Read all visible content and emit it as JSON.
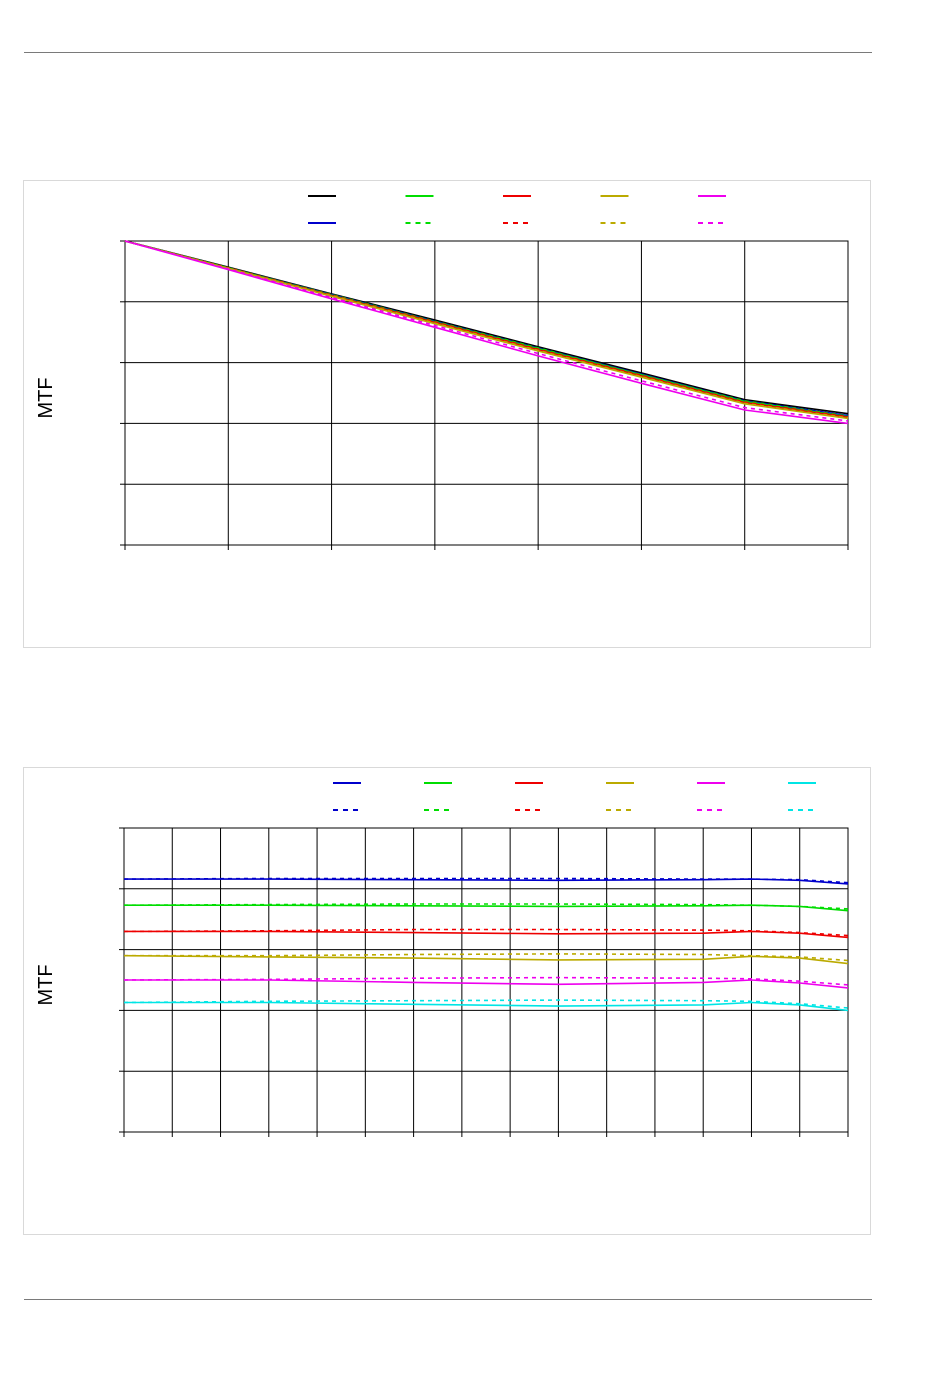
{
  "chart_data": [
    {
      "type": "line",
      "title": "",
      "xlabel": "",
      "ylabel": "MTF",
      "grid": true,
      "legend": "top",
      "xlim": [
        0,
        7
      ],
      "ylim": [
        0,
        5
      ],
      "x_divisions": 7,
      "y_divisions": 5,
      "series": [
        {
          "color": "#000000",
          "style": "solid",
          "x": [
            0,
            1,
            2,
            3,
            4,
            5,
            6,
            7
          ],
          "y": [
            5.0,
            4.57,
            4.13,
            3.7,
            3.26,
            2.83,
            2.39,
            2.16
          ]
        },
        {
          "color": "#0000cc",
          "style": "solid",
          "x": [
            0,
            1,
            2,
            3,
            4,
            5,
            6,
            7
          ],
          "y": [
            5.0,
            4.56,
            4.12,
            3.68,
            3.24,
            2.81,
            2.37,
            2.13
          ]
        },
        {
          "color": "#00dd00",
          "style": "solid",
          "x": [
            0,
            1,
            2,
            3,
            4,
            5,
            6,
            7
          ],
          "y": [
            5.0,
            4.56,
            4.11,
            3.67,
            3.23,
            2.8,
            2.36,
            2.11
          ]
        },
        {
          "color": "#00dd00",
          "style": "dashed",
          "x": [
            0,
            1,
            2,
            3,
            4,
            5,
            6,
            7
          ],
          "y": [
            5.0,
            4.56,
            4.12,
            3.68,
            3.24,
            2.8,
            2.37,
            2.12
          ]
        },
        {
          "color": "#ee0000",
          "style": "solid",
          "x": [
            0,
            1,
            2,
            3,
            4,
            5,
            6,
            7
          ],
          "y": [
            5.0,
            4.55,
            4.1,
            3.66,
            3.21,
            2.78,
            2.34,
            2.1
          ]
        },
        {
          "color": "#ee0000",
          "style": "dashed",
          "x": [
            0,
            1,
            2,
            3,
            4,
            5,
            6,
            7
          ],
          "y": [
            5.0,
            4.56,
            4.11,
            3.67,
            3.22,
            2.79,
            2.35,
            2.11
          ]
        },
        {
          "color": "#bbaa00",
          "style": "solid",
          "x": [
            0,
            1,
            2,
            3,
            4,
            5,
            6,
            7
          ],
          "y": [
            5.0,
            4.55,
            4.09,
            3.64,
            3.19,
            2.76,
            2.32,
            2.08
          ]
        },
        {
          "color": "#bbaa00",
          "style": "dashed",
          "x": [
            0,
            1,
            2,
            3,
            4,
            5,
            6,
            7
          ],
          "y": [
            5.0,
            4.55,
            4.1,
            3.65,
            3.2,
            2.77,
            2.33,
            2.09
          ]
        },
        {
          "color": "#ee00ee",
          "style": "solid",
          "x": [
            0,
            1,
            2,
            3,
            4,
            5,
            6,
            7
          ],
          "y": [
            5.0,
            4.53,
            4.05,
            3.58,
            3.11,
            2.66,
            2.22,
            2.0
          ]
        },
        {
          "color": "#ee00ee",
          "style": "dashed",
          "x": [
            0,
            1,
            2,
            3,
            4,
            5,
            6,
            7
          ],
          "y": [
            5.0,
            4.54,
            4.07,
            3.61,
            3.15,
            2.7,
            2.26,
            2.04
          ]
        }
      ],
      "legend_entries": [
        {
          "color": "#000000",
          "style": "solid",
          "row": 0,
          "col": 0
        },
        {
          "color": "#00dd00",
          "style": "solid",
          "row": 0,
          "col": 1
        },
        {
          "color": "#ee0000",
          "style": "solid",
          "row": 0,
          "col": 2
        },
        {
          "color": "#bbaa00",
          "style": "solid",
          "row": 0,
          "col": 3
        },
        {
          "color": "#ee00ee",
          "style": "solid",
          "row": 0,
          "col": 4
        },
        {
          "color": "#0000cc",
          "style": "solid",
          "row": 1,
          "col": 0
        },
        {
          "color": "#00dd00",
          "style": "dashed",
          "row": 1,
          "col": 1
        },
        {
          "color": "#ee0000",
          "style": "dashed",
          "row": 1,
          "col": 2
        },
        {
          "color": "#bbaa00",
          "style": "dashed",
          "row": 1,
          "col": 3
        },
        {
          "color": "#ee00ee",
          "style": "dashed",
          "row": 1,
          "col": 4
        }
      ]
    },
    {
      "type": "line",
      "title": "",
      "xlabel": "",
      "ylabel": "MTF",
      "grid": true,
      "legend": "top",
      "xlim": [
        0,
        15
      ],
      "ylim": [
        0,
        5
      ],
      "x_divisions": 15,
      "y_divisions": 5,
      "series": [
        {
          "color": "#0000cc",
          "style": "solid",
          "x": [
            0,
            3,
            6,
            9,
            12,
            13,
            14,
            15
          ],
          "y": [
            4.16,
            4.16,
            4.15,
            4.14,
            4.15,
            4.16,
            4.14,
            4.08
          ]
        },
        {
          "color": "#0000cc",
          "style": "dashed",
          "x": [
            0,
            3,
            6,
            9,
            12,
            13,
            14,
            15
          ],
          "y": [
            4.16,
            4.17,
            4.17,
            4.17,
            4.16,
            4.16,
            4.15,
            4.1
          ]
        },
        {
          "color": "#00dd00",
          "style": "solid",
          "x": [
            0,
            3,
            6,
            9,
            12,
            13,
            14,
            15
          ],
          "y": [
            3.73,
            3.73,
            3.72,
            3.71,
            3.72,
            3.73,
            3.71,
            3.64
          ]
        },
        {
          "color": "#00dd00",
          "style": "dashed",
          "x": [
            0,
            3,
            6,
            9,
            12,
            13,
            14,
            15
          ],
          "y": [
            3.73,
            3.74,
            3.75,
            3.75,
            3.74,
            3.73,
            3.71,
            3.67
          ]
        },
        {
          "color": "#ee0000",
          "style": "solid",
          "x": [
            0,
            3,
            6,
            9,
            12,
            13,
            14,
            15
          ],
          "y": [
            3.3,
            3.3,
            3.28,
            3.26,
            3.27,
            3.3,
            3.27,
            3.2
          ]
        },
        {
          "color": "#ee0000",
          "style": "dashed",
          "x": [
            0,
            3,
            6,
            9,
            12,
            13,
            14,
            15
          ],
          "y": [
            3.3,
            3.31,
            3.33,
            3.33,
            3.32,
            3.31,
            3.28,
            3.23
          ]
        },
        {
          "color": "#bbaa00",
          "style": "solid",
          "x": [
            0,
            3,
            6,
            9,
            12,
            13,
            14,
            15
          ],
          "y": [
            2.9,
            2.88,
            2.86,
            2.83,
            2.84,
            2.89,
            2.86,
            2.77
          ]
        },
        {
          "color": "#bbaa00",
          "style": "dashed",
          "x": [
            0,
            3,
            6,
            9,
            12,
            13,
            14,
            15
          ],
          "y": [
            2.9,
            2.9,
            2.92,
            2.93,
            2.92,
            2.9,
            2.88,
            2.82
          ]
        },
        {
          "color": "#ee00ee",
          "style": "solid",
          "x": [
            0,
            3,
            6,
            9,
            12,
            13,
            14,
            15
          ],
          "y": [
            2.5,
            2.5,
            2.46,
            2.43,
            2.46,
            2.5,
            2.45,
            2.37
          ]
        },
        {
          "color": "#ee00ee",
          "style": "dashed",
          "x": [
            0,
            3,
            6,
            9,
            12,
            13,
            14,
            15
          ],
          "y": [
            2.5,
            2.51,
            2.53,
            2.54,
            2.53,
            2.52,
            2.48,
            2.42
          ]
        },
        {
          "color": "#00e5e5",
          "style": "solid",
          "x": [
            0,
            3,
            6,
            9,
            12,
            13,
            14,
            15
          ],
          "y": [
            2.13,
            2.13,
            2.1,
            2.07,
            2.09,
            2.13,
            2.09,
            2.0
          ]
        },
        {
          "color": "#00e5e5",
          "style": "dashed",
          "x": [
            0,
            3,
            6,
            9,
            12,
            13,
            14,
            15
          ],
          "y": [
            2.13,
            2.15,
            2.16,
            2.17,
            2.16,
            2.15,
            2.11,
            2.04
          ]
        }
      ],
      "legend_entries": [
        {
          "color": "#0000cc",
          "style": "solid",
          "row": 0,
          "col": 0
        },
        {
          "color": "#00dd00",
          "style": "solid",
          "row": 0,
          "col": 1
        },
        {
          "color": "#ee0000",
          "style": "solid",
          "row": 0,
          "col": 2
        },
        {
          "color": "#bbaa00",
          "style": "solid",
          "row": 0,
          "col": 3
        },
        {
          "color": "#ee00ee",
          "style": "solid",
          "row": 0,
          "col": 4
        },
        {
          "color": "#00e5e5",
          "style": "solid",
          "row": 0,
          "col": 5
        },
        {
          "color": "#0000cc",
          "style": "dashed",
          "row": 1,
          "col": 0
        },
        {
          "color": "#00dd00",
          "style": "dashed",
          "row": 1,
          "col": 1
        },
        {
          "color": "#ee0000",
          "style": "dashed",
          "row": 1,
          "col": 2
        },
        {
          "color": "#bbaa00",
          "style": "dashed",
          "row": 1,
          "col": 3
        },
        {
          "color": "#ee00ee",
          "style": "dashed",
          "row": 1,
          "col": 4
        },
        {
          "color": "#00e5e5",
          "style": "dashed",
          "row": 1,
          "col": 5
        }
      ]
    }
  ]
}
